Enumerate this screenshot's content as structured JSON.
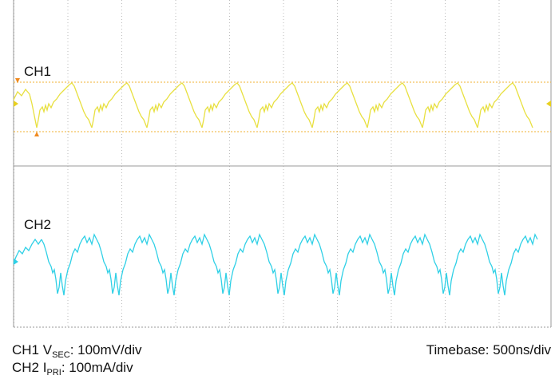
{
  "channels": [
    {
      "label": "CH1"
    },
    {
      "label": "CH2"
    }
  ],
  "legend": {
    "ch1": {
      "prefix": "CH1 V",
      "subscript": "SEC",
      "scale": ": 100mV/div"
    },
    "ch2": {
      "prefix": "CH2 I",
      "subscript": "PRI",
      "scale": ": 100mA/div"
    },
    "timebase": "Timebase: 500ns/div"
  }
}
